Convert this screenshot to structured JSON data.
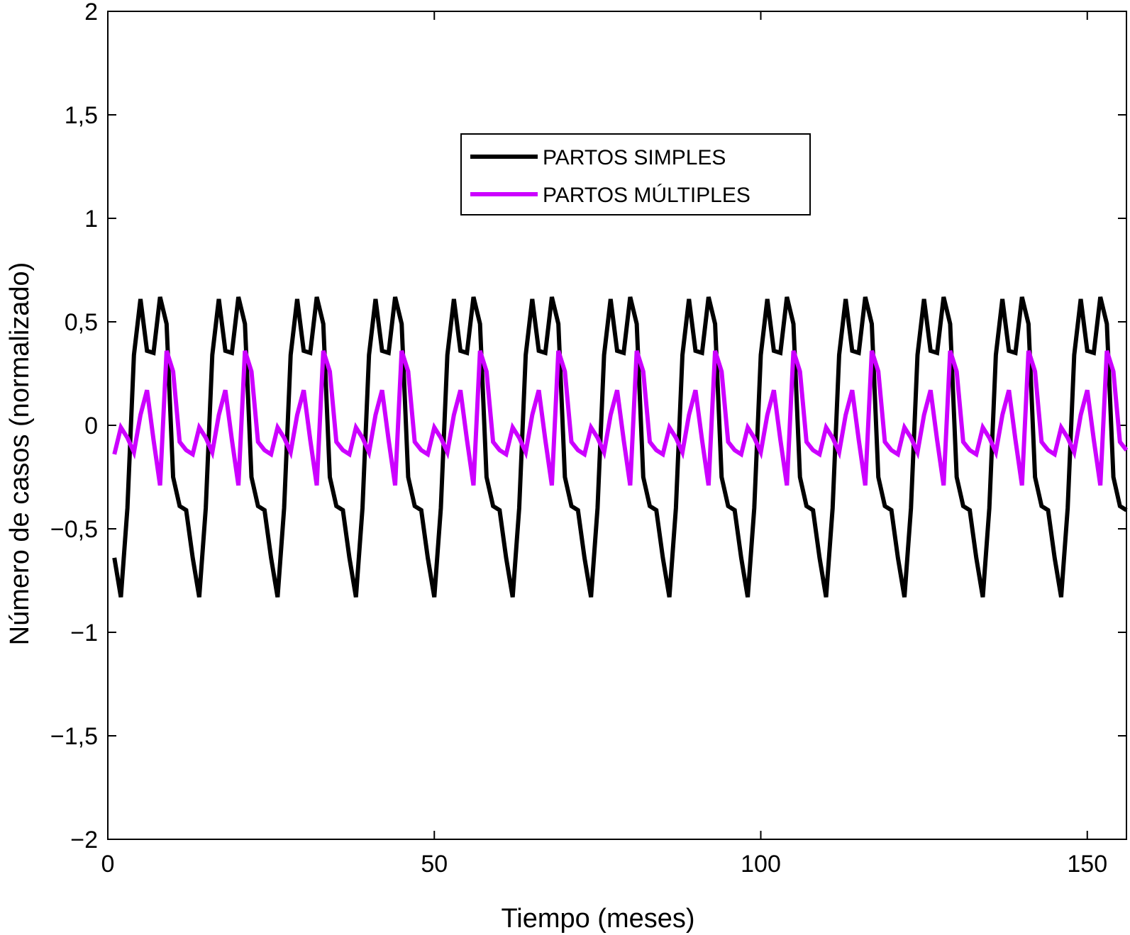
{
  "chart_data": {
    "type": "line",
    "xlabel": "Tiempo (meses)",
    "ylabel": "Número de casos (normalizado)",
    "xlim": [
      0,
      156
    ],
    "ylim": [
      -2,
      2
    ],
    "xticks": [
      0,
      50,
      100,
      150
    ],
    "xtick_labels": [
      "0",
      "50",
      "100",
      "150"
    ],
    "yticks": [
      2,
      1.5,
      1,
      0.5,
      0,
      -0.5,
      -1,
      -1.5,
      -2
    ],
    "ytick_labels": [
      "2",
      "1,5",
      "1",
      "0,5",
      "0",
      "−0,5",
      "−1",
      "−1,5",
      "−2"
    ],
    "grid": false,
    "legend_position": "top-center",
    "period_months": 12,
    "x_start": 1,
    "x_end": 156,
    "series": [
      {
        "name": "PARTOS SIMPLES",
        "color": "#000000",
        "cycle_values": [
          -0.64,
          -0.83,
          -0.4,
          0.34,
          0.61,
          0.36,
          0.35,
          0.62,
          0.49,
          -0.25,
          -0.39,
          -0.41
        ]
      },
      {
        "name": "PARTOS MÚLTIPLES",
        "color": "#cc00ff",
        "cycle_values": [
          -0.14,
          -0.01,
          -0.06,
          -0.13,
          0.05,
          0.17,
          -0.07,
          -0.29,
          0.36,
          0.26,
          -0.08,
          -0.12
        ]
      }
    ]
  }
}
